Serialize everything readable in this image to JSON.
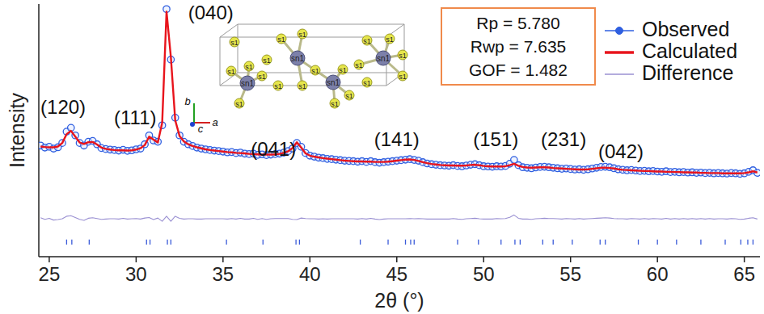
{
  "chart_data": {
    "type": "line",
    "xlabel": "2θ (°)",
    "ylabel": "Intensity",
    "xlim": [
      24.4,
      65.9
    ],
    "ylim": [
      0,
      100
    ],
    "xticks": [
      25,
      30,
      35,
      40,
      45,
      50,
      55,
      60,
      65
    ],
    "tick_labels": "x",
    "grid": false,
    "legend": "top-right",
    "x": [
      24.5,
      24.75,
      25.0,
      25.25,
      25.5,
      25.75,
      26.0,
      26.25,
      26.5,
      26.75,
      27.0,
      27.25,
      27.5,
      27.75,
      28.0,
      28.25,
      28.5,
      28.75,
      29.0,
      29.25,
      29.5,
      29.75,
      30.0,
      30.25,
      30.5,
      30.75,
      31.0,
      31.25,
      31.5,
      31.75,
      32.0,
      32.25,
      32.5,
      32.75,
      33.0,
      33.25,
      33.5,
      33.75,
      34.0,
      34.25,
      34.5,
      34.75,
      35.0,
      35.25,
      35.5,
      35.75,
      36.0,
      36.25,
      36.5,
      36.75,
      37.0,
      37.25,
      37.5,
      37.75,
      38.0,
      38.25,
      38.5,
      38.75,
      39.0,
      39.25,
      39.5,
      39.75,
      40.0,
      40.25,
      40.5,
      40.75,
      41.0,
      41.25,
      41.5,
      41.75,
      42.0,
      42.25,
      42.5,
      42.75,
      43.0,
      43.25,
      43.5,
      43.75,
      44.0,
      44.25,
      44.5,
      44.75,
      45.0,
      45.25,
      45.5,
      45.75,
      46.0,
      46.25,
      46.5,
      46.75,
      47.0,
      47.25,
      47.5,
      47.75,
      48.0,
      48.25,
      48.5,
      48.75,
      49.0,
      49.25,
      49.5,
      49.75,
      50.0,
      50.25,
      50.5,
      50.75,
      51.0,
      51.25,
      51.5,
      51.75,
      52.0,
      52.25,
      52.5,
      52.75,
      53.0,
      53.25,
      53.5,
      53.75,
      54.0,
      54.25,
      54.5,
      54.75,
      55.0,
      55.25,
      55.5,
      55.75,
      56.0,
      56.25,
      56.5,
      56.75,
      57.0,
      57.25,
      57.5,
      57.75,
      58.0,
      58.25,
      58.5,
      58.75,
      59.0,
      59.25,
      59.5,
      59.75,
      60.0,
      60.25,
      60.5,
      60.75,
      61.0,
      61.25,
      61.5,
      61.75,
      62.0,
      62.25,
      62.5,
      62.75,
      63.0,
      63.25,
      63.5,
      63.75,
      64.0,
      64.25,
      64.5,
      64.75,
      65.0,
      65.25,
      65.5,
      65.75
    ],
    "series": [
      {
        "name": "Observed",
        "type": "scatter",
        "marker": "circle",
        "color": "#2f5fe0",
        "values": [
          44.0,
          43.2,
          43.5,
          42.8,
          43.3,
          45.0,
          49.5,
          51.0,
          48.0,
          45.0,
          44.0,
          45.5,
          45.8,
          44.5,
          43.0,
          42.6,
          42.4,
          42.2,
          42.0,
          42.3,
          41.9,
          42.1,
          42.5,
          42.8,
          44.5,
          48.0,
          46.0,
          45.5,
          52.0,
          98.0,
          78.0,
          55.0,
          48.0,
          45.5,
          44.5,
          43.8,
          43.2,
          42.8,
          42.5,
          42.2,
          42.0,
          41.8,
          41.6,
          41.3,
          41.4,
          41.0,
          41.2,
          40.8,
          40.6,
          40.8,
          40.3,
          40.5,
          40.2,
          40.4,
          40.6,
          40.8,
          41.2,
          41.8,
          42.8,
          45.0,
          43.5,
          41.0,
          40.0,
          39.6,
          39.2,
          39.0,
          38.7,
          38.6,
          38.4,
          38.2,
          38.0,
          37.9,
          37.8,
          37.6,
          37.8,
          37.5,
          37.8,
          37.4,
          37.2,
          37.4,
          37.6,
          37.8,
          38.0,
          38.2,
          38.4,
          38.6,
          38.3,
          38.0,
          37.4,
          36.9,
          36.6,
          36.4,
          36.2,
          36.1,
          36.0,
          36.2,
          35.9,
          35.8,
          36.1,
          36.4,
          36.6,
          36.2,
          35.8,
          35.7,
          35.6,
          35.8,
          35.7,
          35.9,
          36.8,
          38.3,
          36.2,
          35.4,
          35.2,
          35.0,
          35.3,
          35.5,
          35.6,
          35.4,
          35.2,
          35.0,
          34.8,
          34.9,
          34.7,
          34.5,
          34.6,
          34.4,
          34.6,
          34.9,
          35.2,
          35.5,
          35.6,
          35.4,
          35.0,
          34.6,
          34.4,
          34.2,
          34.3,
          34.1,
          33.9,
          34.0,
          33.8,
          33.9,
          33.7,
          33.6,
          33.8,
          33.5,
          33.6,
          33.4,
          33.5,
          33.3,
          33.4,
          33.2,
          33.3,
          33.1,
          33.2,
          33.0,
          33.1,
          33.0,
          32.9,
          33.1,
          33.0,
          32.8,
          33.0,
          33.6,
          34.2,
          33.2
        ]
      },
      {
        "name": "Calculated",
        "type": "line",
        "line_style": "solid",
        "color": "#e8141c",
        "values": [
          43.6,
          43.4,
          43.3,
          43.3,
          43.6,
          45.0,
          48.5,
          49.8,
          47.5,
          45.2,
          44.6,
          45.3,
          45.4,
          44.4,
          43.2,
          42.7,
          42.4,
          42.2,
          42.1,
          42.1,
          42.0,
          42.1,
          42.4,
          42.9,
          44.2,
          47.5,
          46.3,
          45.2,
          53.0,
          97.0,
          79.0,
          54.0,
          47.8,
          45.6,
          44.5,
          43.8,
          43.3,
          42.9,
          42.5,
          42.2,
          42.0,
          41.8,
          41.6,
          41.4,
          41.3,
          41.1,
          41.0,
          40.9,
          40.7,
          40.6,
          40.5,
          40.4,
          40.4,
          40.4,
          40.5,
          40.7,
          41.1,
          41.7,
          43.0,
          45.3,
          43.2,
          40.9,
          40.0,
          39.6,
          39.3,
          39.0,
          38.8,
          38.6,
          38.4,
          38.2,
          38.0,
          37.9,
          37.8,
          37.7,
          37.7,
          37.6,
          37.6,
          37.5,
          37.5,
          37.5,
          37.6,
          37.8,
          38.0,
          38.2,
          38.4,
          38.5,
          38.3,
          37.9,
          37.4,
          37.0,
          36.7,
          36.5,
          36.3,
          36.2,
          36.1,
          36.1,
          36.0,
          36.0,
          36.1,
          36.3,
          36.4,
          36.2,
          35.9,
          35.8,
          35.7,
          35.7,
          35.7,
          35.8,
          36.2,
          36.8,
          36.0,
          35.5,
          35.3,
          35.2,
          35.3,
          35.4,
          35.4,
          35.3,
          35.1,
          35.0,
          34.9,
          34.8,
          34.7,
          34.6,
          34.5,
          34.5,
          34.6,
          34.8,
          35.0,
          35.2,
          35.2,
          35.1,
          34.9,
          34.6,
          34.4,
          34.3,
          34.2,
          34.1,
          34.0,
          33.9,
          33.9,
          33.8,
          33.7,
          33.7,
          33.6,
          33.6,
          33.5,
          33.5,
          33.4,
          33.4,
          33.3,
          33.3,
          33.2,
          33.2,
          33.1,
          33.1,
          33.1,
          33.0,
          33.0,
          33.0,
          33.0,
          33.0,
          33.1,
          33.4,
          33.8,
          33.3
        ]
      },
      {
        "name": "Difference",
        "type": "line",
        "line_style": "solid",
        "color": "#9a90d2",
        "values": [
          15.4,
          14.8,
          15.2,
          14.5,
          14.7,
          15.0,
          16.0,
          16.2,
          15.5,
          14.8,
          14.4,
          15.2,
          15.4,
          15.1,
          14.8,
          14.9,
          15.0,
          15.0,
          14.9,
          15.2,
          14.9,
          15.0,
          15.1,
          14.9,
          15.3,
          15.5,
          14.7,
          15.3,
          14.0,
          16.0,
          14.0,
          16.0,
          15.2,
          14.9,
          15.0,
          15.0,
          14.9,
          14.9,
          15.0,
          15.0,
          15.0,
          15.0,
          15.0,
          14.9,
          15.1,
          14.9,
          15.2,
          14.9,
          14.9,
          15.2,
          14.8,
          15.1,
          14.8,
          15.0,
          15.1,
          15.1,
          15.1,
          15.1,
          14.8,
          14.7,
          15.3,
          15.1,
          15.0,
          15.0,
          14.9,
          15.0,
          14.9,
          15.0,
          15.0,
          15.0,
          15.0,
          15.0,
          15.0,
          14.9,
          15.1,
          14.9,
          15.2,
          14.9,
          14.7,
          14.9,
          15.0,
          15.0,
          15.0,
          15.0,
          15.0,
          15.1,
          15.0,
          15.1,
          15.0,
          14.9,
          14.9,
          14.9,
          14.9,
          14.9,
          14.9,
          15.1,
          14.9,
          14.8,
          15.0,
          15.1,
          15.2,
          15.0,
          14.9,
          14.9,
          14.9,
          15.1,
          15.0,
          15.1,
          15.6,
          16.5,
          15.2,
          14.9,
          14.9,
          14.8,
          15.0,
          15.1,
          15.2,
          15.1,
          15.1,
          15.0,
          14.9,
          15.1,
          15.0,
          14.9,
          15.1,
          14.9,
          15.0,
          15.1,
          15.2,
          15.3,
          15.4,
          15.3,
          15.1,
          15.0,
          15.0,
          14.9,
          15.1,
          15.0,
          14.9,
          15.1,
          14.9,
          15.1,
          15.0,
          14.9,
          15.2,
          14.9,
          15.1,
          14.9,
          15.1,
          14.9,
          15.1,
          14.9,
          15.1,
          14.9,
          15.1,
          14.9,
          15.0,
          15.0,
          14.9,
          15.1,
          15.0,
          14.8,
          14.9,
          15.2,
          15.4,
          14.9
        ]
      }
    ],
    "reflections": [
      26.0,
      26.3,
      27.3,
      30.6,
      30.8,
      31.8,
      32.0,
      35.2,
      37.3,
      39.2,
      39.4,
      42.9,
      44.5,
      45.5,
      45.8,
      46.0,
      48.5,
      49.7,
      51.0,
      51.8,
      52.1,
      53.4,
      54.0,
      55.1,
      56.7,
      57.0,
      58.9,
      60.0,
      61.1,
      62.5,
      63.9,
      64.8,
      65.2,
      65.5
    ],
    "reflections_color": "#3a5bd9",
    "annotations": [
      {
        "text": "(120)",
        "x": 25.8,
        "y": 58.5
      },
      {
        "text": "(111)",
        "x": 29.95,
        "y": 54.5
      },
      {
        "text": "(040)",
        "x": 34.3,
        "y": 96
      },
      {
        "text": "(041)",
        "x": 37.9,
        "y": 42
      },
      {
        "text": "(141)",
        "x": 45.0,
        "y": 45.7
      },
      {
        "text": "(151)",
        "x": 50.7,
        "y": 45.7
      },
      {
        "text": "(231)",
        "x": 54.6,
        "y": 45.7
      },
      {
        "text": "(042)",
        "x": 57.9,
        "y": 41
      }
    ],
    "stats": [
      "Rp = 5.780",
      "Rwp = 7.635",
      "GOF = 1.482"
    ],
    "inset": {
      "atoms": [
        "sn1",
        "sn1",
        "sn1",
        "sn1",
        "s1",
        "s1",
        "s1",
        "s1",
        "s1",
        "s1",
        "s1",
        "s1",
        "s1",
        "s1",
        "s1",
        "s1",
        "s1",
        "s1",
        "s1",
        "s1",
        "s1",
        "s1",
        "s1",
        "s1"
      ],
      "axes": [
        "a",
        "b",
        "c"
      ]
    }
  }
}
